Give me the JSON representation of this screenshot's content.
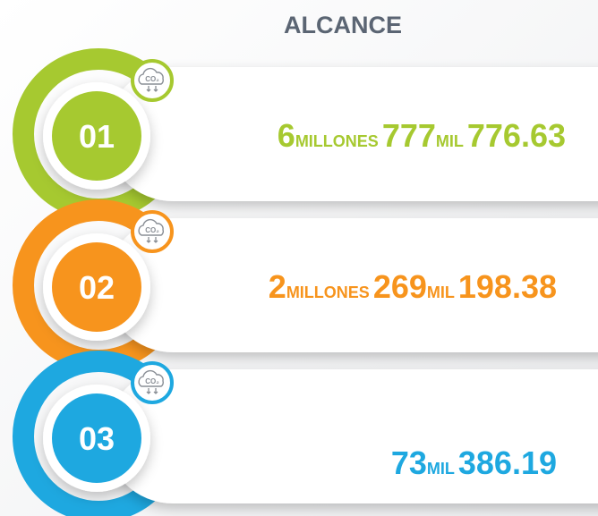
{
  "title": "ALCANCE",
  "icon_label": "CO₂",
  "items": [
    {
      "number": "01",
      "color": "#a6c930",
      "parts": [
        "6",
        "MILLONES",
        "777",
        "MIL",
        "776.63"
      ]
    },
    {
      "number": "02",
      "color": "#f7941d",
      "parts": [
        "2",
        "MILLONES",
        "269",
        "MIL",
        "198.38"
      ]
    },
    {
      "number": "03",
      "color": "#1ea8e0",
      "parts": [
        "73",
        "MIL",
        "386.19"
      ]
    }
  ]
}
